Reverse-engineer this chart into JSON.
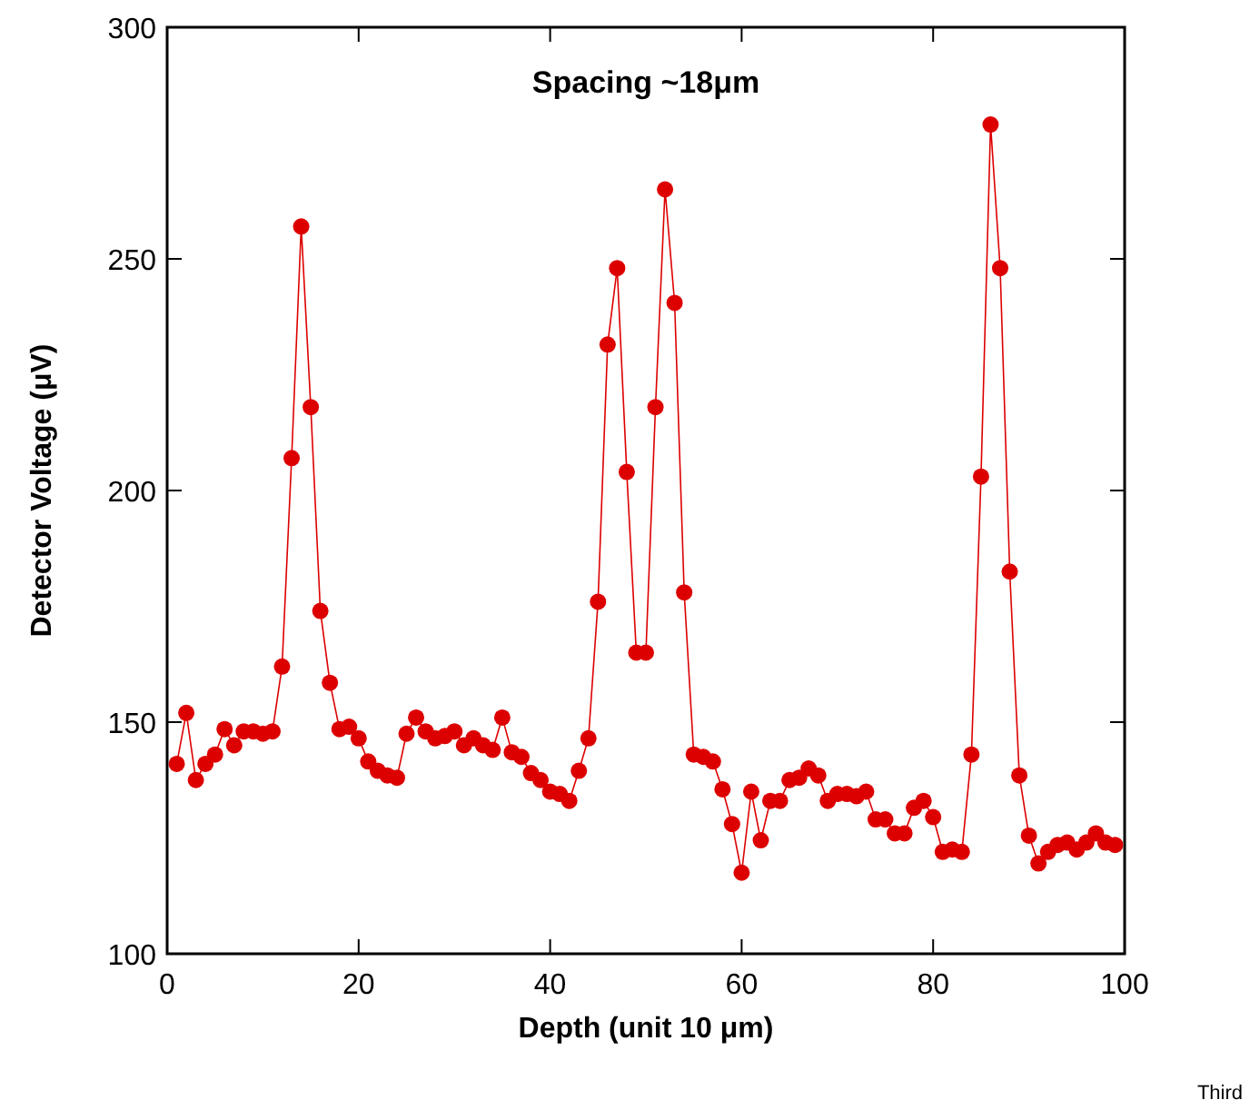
{
  "chart_data": {
    "type": "line",
    "title": "Spacing ~18μm",
    "xlabel": "Depth (unit 10 μm)",
    "ylabel": "Detector Voltage (μV)",
    "annotations": [
      "Third"
    ],
    "xlim": [
      0,
      100
    ],
    "xticks": [
      0,
      20,
      40,
      60,
      80,
      100
    ],
    "ylim": [
      100,
      300
    ],
    "yticks": [
      100,
      150,
      200,
      250,
      300
    ],
    "grid": false,
    "marker": "circle",
    "line_style": "solid",
    "x": [
      1,
      2,
      3,
      4,
      5,
      6,
      7,
      8,
      9,
      10,
      11,
      12,
      13,
      14,
      15,
      16,
      17,
      18,
      19,
      20,
      21,
      22,
      23,
      24,
      25,
      26,
      27,
      28,
      29,
      30,
      31,
      32,
      33,
      34,
      35,
      36,
      37,
      38,
      39,
      40,
      41,
      42,
      43,
      44,
      45,
      46,
      47,
      48,
      49,
      50,
      51,
      52,
      53,
      54,
      55,
      56,
      57,
      58,
      59,
      60,
      61,
      62,
      63,
      64,
      65,
      66,
      67,
      68,
      69,
      70,
      71,
      72,
      73,
      74,
      75,
      76,
      77,
      78,
      79,
      80,
      81,
      82,
      83,
      84,
      85,
      86,
      87,
      88,
      89,
      90,
      91,
      92,
      93,
      94,
      95,
      96,
      97,
      98,
      99
    ],
    "series": [
      {
        "color": "#dd0000",
        "values": [
          141,
          152,
          137.5,
          141,
          143,
          148.5,
          145,
          148,
          148,
          147.5,
          148,
          162,
          207,
          257,
          218,
          174,
          158.5,
          148.5,
          149,
          146.5,
          141.5,
          139.5,
          138.5,
          138,
          147.5,
          151,
          148,
          146.5,
          147,
          148,
          145,
          146.5,
          145,
          144,
          151,
          143.5,
          142.5,
          139,
          137.5,
          135,
          134.5,
          133,
          139.5,
          146.5,
          176,
          231.5,
          248,
          204,
          165,
          165,
          218,
          265,
          240.5,
          178,
          143,
          142.5,
          141.5,
          135.5,
          128,
          117.5,
          135,
          124.5,
          133,
          133,
          137.5,
          138,
          140,
          138.5,
          133,
          134.5,
          134.5,
          134,
          135,
          129,
          129,
          126,
          126,
          131.5,
          133,
          129.5,
          122,
          122.5,
          122,
          143,
          203,
          279,
          248,
          182.5,
          138.5,
          125.5,
          119.5,
          122,
          123.5,
          124,
          122.5,
          124,
          126,
          124,
          123.5
        ]
      }
    ]
  }
}
